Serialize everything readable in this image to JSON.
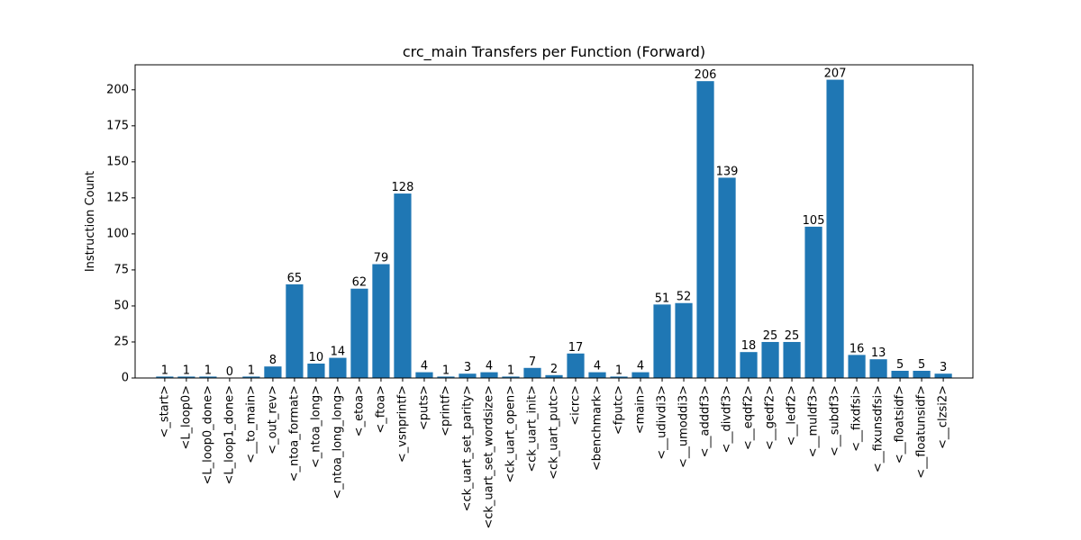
{
  "chart_data": {
    "type": "bar",
    "title": "crc_main Transfers per Function (Forward)",
    "xlabel": "",
    "ylabel": "Instruction Count",
    "ylim": [
      0,
      217.35
    ],
    "yticks": [
      0,
      25,
      50,
      75,
      100,
      125,
      150,
      175,
      200
    ],
    "grid": false,
    "legend": "none",
    "bar_color": "#1f77b4",
    "categories": [
      "<_start>",
      "<L_loop0>",
      "<L_loop0_done>",
      "<L_loop1_done>",
      "<__to_main>",
      "<_out_rev>",
      "<_ntoa_format>",
      "<_ntoa_long>",
      "<_ntoa_long_long>",
      "<_etoa>",
      "<_ftoa>",
      "<_vsnprintf>",
      "<puts>",
      "<printf>",
      "<ck_uart_set_parity>",
      "<ck_uart_set_wordsize>",
      "<ck_uart_open>",
      "<ck_uart_init>",
      "<ck_uart_putc>",
      "<icrc>",
      "<benchmark>",
      "<fputc>",
      "<main>",
      "<__udivdi3>",
      "<__umoddi3>",
      "<__adddf3>",
      "<__divdf3>",
      "<__eqdf2>",
      "<__gedf2>",
      "<__ledf2>",
      "<__muldf3>",
      "<__subdf3>",
      "<__fixdfsi>",
      "<__fixunsdfsi>",
      "<__floatsidf>",
      "<__floatunsidf>",
      "<__clzsi2>"
    ],
    "values": [
      1,
      1,
      1,
      0,
      1,
      8,
      65,
      10,
      14,
      62,
      79,
      128,
      4,
      1,
      3,
      4,
      1,
      7,
      2,
      17,
      4,
      1,
      4,
      51,
      52,
      206,
      139,
      18,
      25,
      25,
      105,
      207,
      16,
      13,
      5,
      5,
      3
    ]
  }
}
